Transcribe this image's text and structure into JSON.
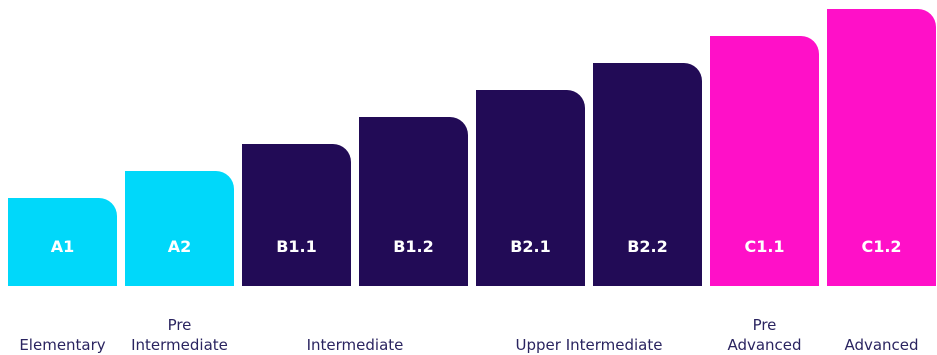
{
  "colors": {
    "cyan": "#00d8fa",
    "navy": "#220b56",
    "magenta": "#ff10c8",
    "label_text": "#2a2460",
    "step_text": "#ffffff"
  },
  "levels": [
    {
      "code": "A1",
      "rank": 1,
      "color": "cyan"
    },
    {
      "code": "A2",
      "rank": 2,
      "color": "cyan"
    },
    {
      "code": "B1.1",
      "rank": 3,
      "color": "navy"
    },
    {
      "code": "B1.2",
      "rank": 4,
      "color": "navy"
    },
    {
      "code": "B2.1",
      "rank": 5,
      "color": "navy"
    },
    {
      "code": "B2.2",
      "rank": 6,
      "color": "navy"
    },
    {
      "code": "C1.1",
      "rank": 7,
      "color": "magenta"
    },
    {
      "code": "C1.2",
      "rank": 8,
      "color": "magenta"
    }
  ],
  "groups": [
    {
      "name": "Elementary",
      "levels": [
        "A1"
      ]
    },
    {
      "name": "Pre\nIntermediate",
      "levels": [
        "A2"
      ]
    },
    {
      "name": "Intermediate",
      "levels": [
        "B1.1",
        "B1.2"
      ]
    },
    {
      "name": "Upper Intermediate",
      "levels": [
        "B2.1",
        "B2.2"
      ]
    },
    {
      "name": "Pre\nAdvanced",
      "levels": [
        "C1.1"
      ]
    },
    {
      "name": "Advanced",
      "levels": [
        "C1.2"
      ]
    }
  ]
}
